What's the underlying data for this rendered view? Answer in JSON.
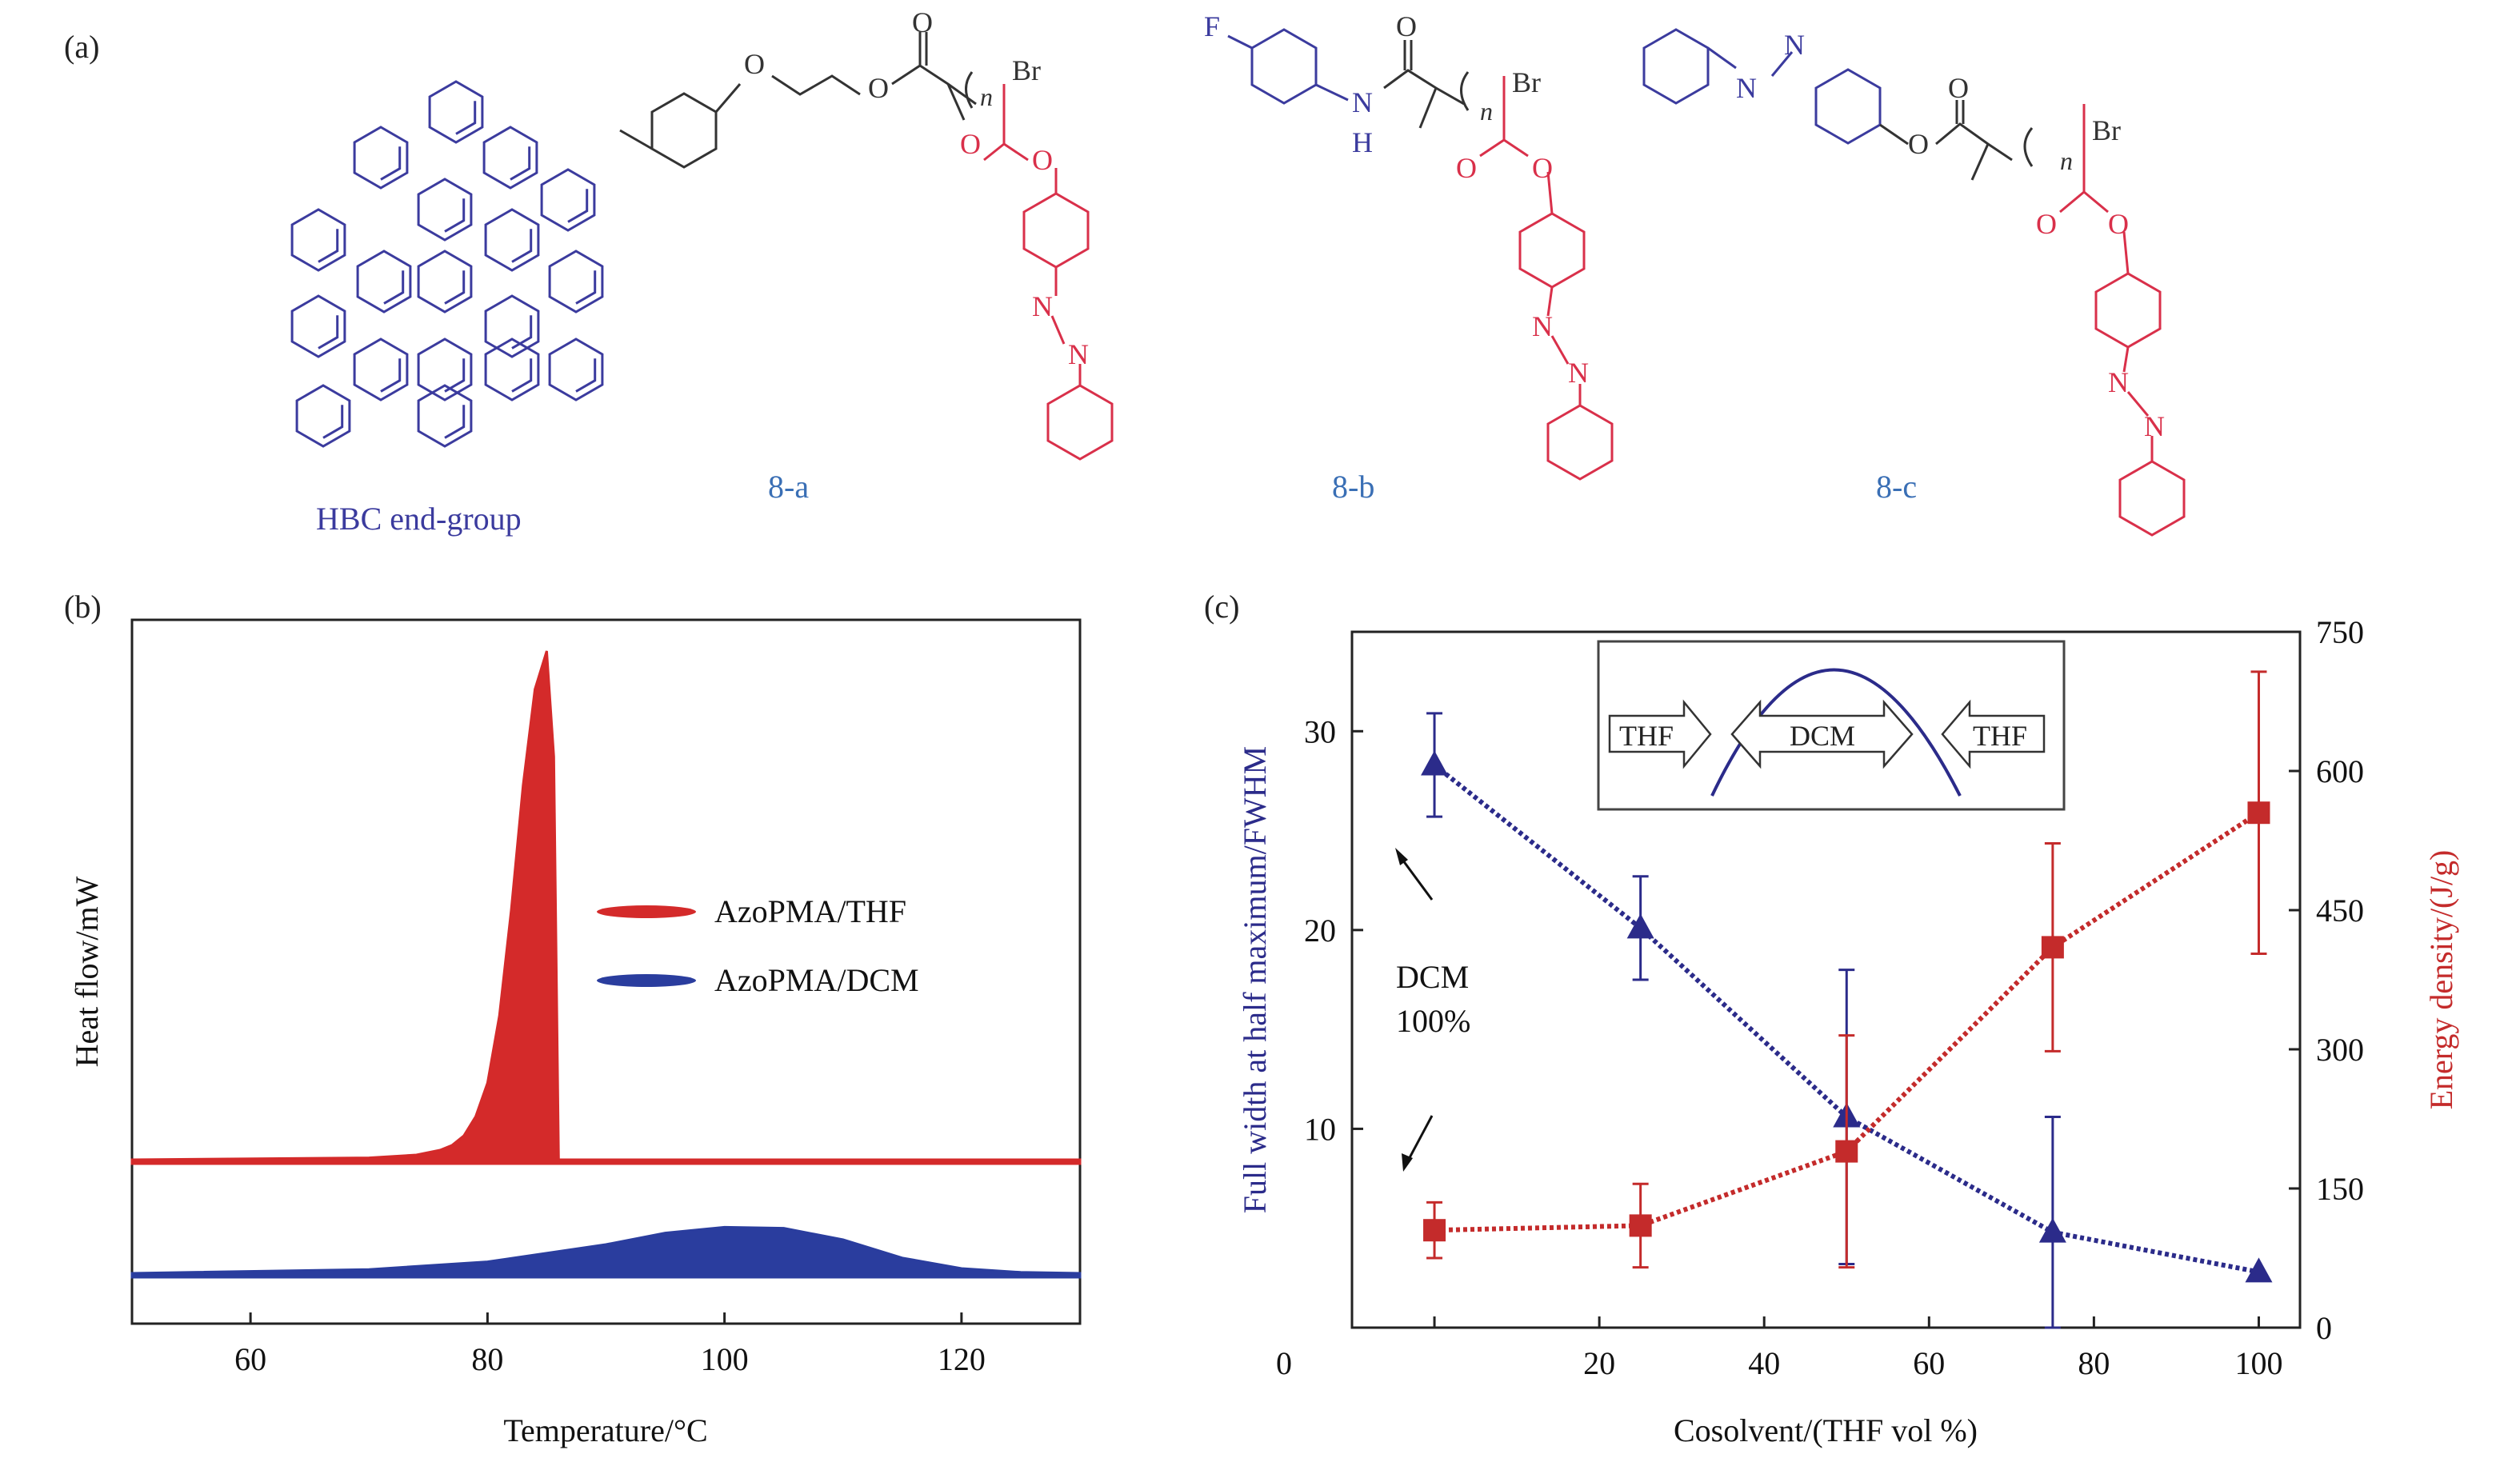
{
  "panels": {
    "a": "(a)",
    "b": "(b)",
    "c": "(c)"
  },
  "molecules": {
    "hbc_label": "HBC end-group",
    "label_8a": "8-a",
    "label_8b": "8-b",
    "label_8c": "8-c",
    "atoms": {
      "O": "O",
      "N": "N",
      "H": "H",
      "F": "F",
      "Br": "Br",
      "n": "n"
    },
    "colors": {
      "hbc": "#3b3b9e",
      "poly": "#d9304a",
      "label": "#3a6fb5",
      "dark": "#333333"
    }
  },
  "chart_data": [
    {
      "type": "area",
      "title": "",
      "xlabel": "Temperature/°C",
      "ylabel": "Heat flow/mW",
      "xlim": [
        50,
        130
      ],
      "xticks": [
        60,
        80,
        100,
        120
      ],
      "yticks": [],
      "legend_position": "center-right",
      "series": [
        {
          "name": "AzoPMA/THF",
          "color": "#d42a2a",
          "x": [
            50,
            70,
            74,
            76,
            77,
            78,
            79,
            80,
            81,
            82,
            83,
            84,
            85,
            85.6,
            86,
            130
          ],
          "y": [
            0,
            0.02,
            0.05,
            0.1,
            0.15,
            0.25,
            0.45,
            0.8,
            1.5,
            2.6,
            3.9,
            4.9,
            5.3,
            4.2,
            0,
            0
          ],
          "baseline_label_y": 0
        },
        {
          "name": "AzoPMA/DCM",
          "color": "#2a3d9e",
          "x": [
            50,
            70,
            80,
            90,
            95,
            100,
            105,
            110,
            115,
            120,
            125,
            130
          ],
          "y": [
            0,
            0.04,
            0.12,
            0.3,
            0.42,
            0.48,
            0.47,
            0.35,
            0.16,
            0.05,
            0.01,
            0
          ]
        }
      ]
    },
    {
      "type": "line",
      "title": "",
      "xlabel": "Cosolvent/(THF vol %)",
      "ylabel": "Full width at half maximum/FWHM",
      "ylabel_right": "Energy density/(J/g)",
      "xlim": [
        -10,
        105
      ],
      "ylim": [
        0,
        35
      ],
      "ylim_right": [
        0,
        750
      ],
      "xticks": [
        0,
        20,
        40,
        60,
        80,
        100
      ],
      "yticks": [
        10,
        20,
        30
      ],
      "yticks_right": [
        0,
        150,
        300,
        450,
        600,
        750
      ],
      "series": [
        {
          "name": "FWHM",
          "axis": "left",
          "marker": "triangle",
          "color": "#2b2b8a",
          "x": [
            0,
            25,
            50,
            75,
            100
          ],
          "y": [
            28.3,
            20.1,
            10.6,
            4.8,
            2.8
          ],
          "err": [
            2.6,
            2.6,
            7.4,
            5.8,
            0
          ]
        },
        {
          "name": "Energy density",
          "axis": "right",
          "marker": "square",
          "color": "#c42b2b",
          "x": [
            0,
            25,
            50,
            75,
            100
          ],
          "y": [
            105,
            110,
            190,
            410,
            555
          ],
          "err": [
            30,
            45,
            125,
            112,
            152
          ]
        }
      ],
      "annotation": {
        "line1": "DCM",
        "line2": "100%"
      },
      "inset": {
        "left": "THF",
        "middle": "DCM",
        "right": "THF"
      }
    }
  ]
}
